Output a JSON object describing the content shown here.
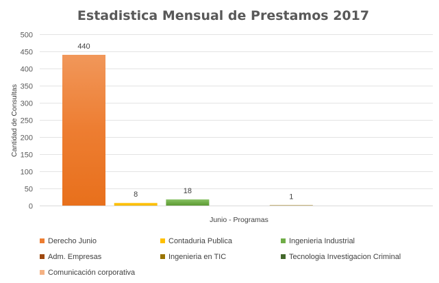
{
  "chart_data": {
    "type": "bar",
    "title": "Estadistica Mensual de Prestamos 2017",
    "xlabel": "Junio - Programas",
    "ylabel": "Cantidad de Consultas",
    "ylim": [
      0,
      500
    ],
    "yticks": [
      0,
      50,
      100,
      150,
      200,
      250,
      300,
      350,
      400,
      450,
      500
    ],
    "grid": true,
    "categories": [
      "Junio - Programas"
    ],
    "series": [
      {
        "name": "Derecho Junio",
        "values": [
          440
        ],
        "label": "440",
        "color": "#ED7D31",
        "color_light": "#F1975A",
        "color_dark": "#E8701C"
      },
      {
        "name": "Contaduria Publica",
        "values": [
          8
        ],
        "label": "8",
        "color": "#FFC000",
        "color_light": "#FFD34F",
        "color_dark": "#F5B800"
      },
      {
        "name": "Ingenieria Industrial",
        "values": [
          18
        ],
        "label": "18",
        "color": "#70AD47",
        "color_light": "#8CC46A",
        "color_dark": "#5E9A37"
      },
      {
        "name": "Adm. Empresas",
        "values": [
          0
        ],
        "label": "",
        "color": "#9E480E",
        "color_light": "#9E480E",
        "color_dark": "#9E480E"
      },
      {
        "name": "Ingenieria en TIC",
        "values": [
          1
        ],
        "label": "1",
        "color": "#997300",
        "color_light": "#C9C9C9",
        "color_dark": "#BFBFBF"
      },
      {
        "name": "Tecnologia Investigacion Criminal",
        "values": [
          0
        ],
        "label": "",
        "color": "#43682B",
        "color_light": "#43682B",
        "color_dark": "#43682B"
      },
      {
        "name": "Comunicación corporativa",
        "values": [
          0
        ],
        "label": "",
        "color": "#F4B183",
        "color_light": "#F4B183",
        "color_dark": "#F4B183"
      }
    ],
    "legend_position": "bottom"
  }
}
